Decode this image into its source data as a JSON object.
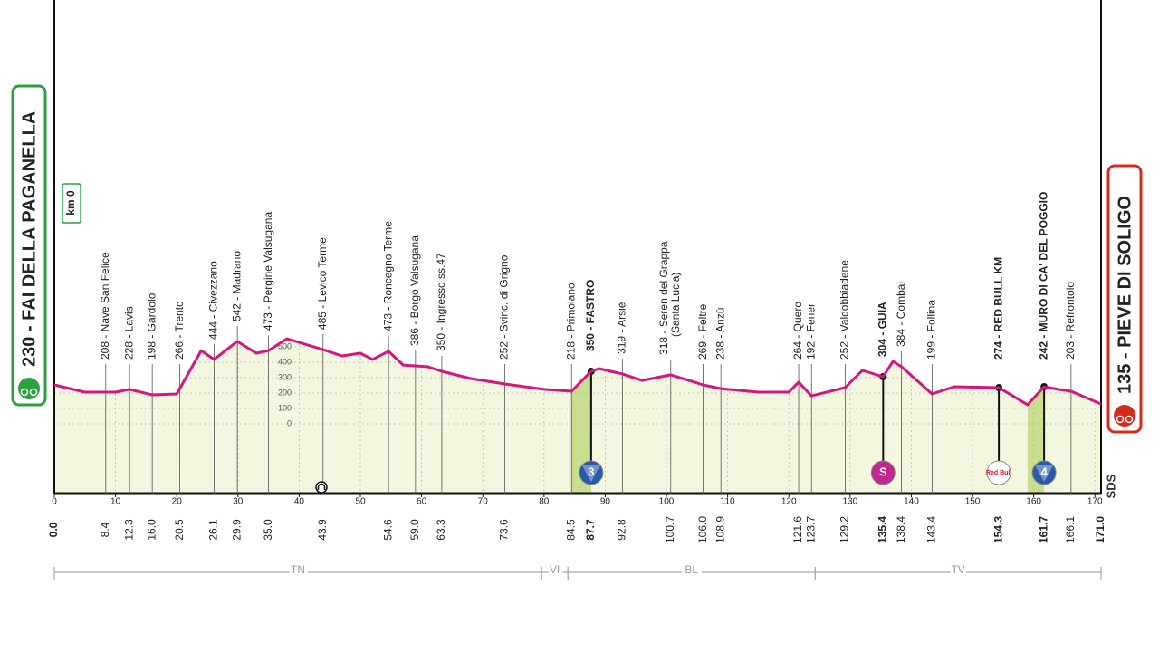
{
  "chart_data": {
    "type": "area",
    "line_color": "#d4177e",
    "area_color": "#f4f7df",
    "climb_color": "#c9de8e",
    "grid": true,
    "xlim": [
      0,
      171
    ],
    "ylim": [
      -453,
      2753
    ],
    "xticks": [
      0,
      10,
      20,
      30,
      40,
      50,
      60,
      70,
      80,
      90,
      100,
      110,
      120,
      130,
      140,
      150,
      160,
      170
    ],
    "yticks": [
      0,
      100,
      200,
      300,
      400,
      500
    ],
    "x": [
      0,
      5,
      10,
      12.3,
      16,
      20,
      24,
      26.1,
      29.9,
      33,
      35,
      38,
      43.9,
      47,
      50,
      52,
      54.6,
      57,
      61,
      63.3,
      68,
      73.6,
      80,
      84.5,
      87.7,
      89,
      92.8,
      96,
      100.7,
      106,
      108.9,
      115,
      120,
      121.6,
      123.7,
      129.2,
      132,
      135.4,
      137,
      138.4,
      143.4,
      147,
      154.3,
      159,
      161.7,
      164,
      166.1,
      171
    ],
    "y": [
      253,
      206,
      206,
      224,
      188,
      194,
      476,
      418,
      535,
      459,
      476,
      553,
      482,
      441,
      459,
      418,
      471,
      382,
      371,
      341,
      294,
      259,
      224,
      212,
      341,
      359,
      324,
      282,
      318,
      253,
      229,
      206,
      206,
      271,
      182,
      235,
      347,
      306,
      406,
      371,
      194,
      241,
      235,
      124,
      241,
      224,
      212,
      129
    ],
    "start": {
      "km": {
        "value": 0,
        "label": "0.0"
      },
      "label": "230 - FAI DELLA PAGANELLA",
      "color": "#2e9e3e",
      "badge": "km 0"
    },
    "finish": {
      "km": {
        "value": 171,
        "label": "171.0"
      },
      "label": "135 - PIEVE DI SOLIGO",
      "color": "#d52b1e"
    },
    "sponsor": "SDS",
    "waypoints": [
      {
        "km": 8.4,
        "label": "208 - Nave San Felice"
      },
      {
        "km": 12.3,
        "label": "228 - Lavis"
      },
      {
        "km": {
          "value": 16,
          "label": "16.0"
        },
        "label": "198 - Gardolo"
      },
      {
        "km": 20.5,
        "label": "266 - Trento"
      },
      {
        "km": 26.1,
        "label": "444 - Civezzano"
      },
      {
        "km": 29.9,
        "label": "542 - Madrano"
      },
      {
        "km": {
          "value": 35,
          "label": "35.0"
        },
        "label": "473 - Pergine Valsugana"
      },
      {
        "km": 43.9,
        "label": "485 - Levico Terme"
      },
      {
        "km": 54.6,
        "label": "473 - Roncegno Terme"
      },
      {
        "km": {
          "value": 59,
          "label": "59.0"
        },
        "label": "386 - Borgo Valsugana"
      },
      {
        "km": 63.3,
        "label": "350 - Ingresso ss.47"
      },
      {
        "km": 73.6,
        "label": "252 - Svinc. di Grigno"
      },
      {
        "km": 84.5,
        "label": "218 - Primolano"
      },
      {
        "km": 87.7,
        "label": "350 - FASTRO",
        "bold": true,
        "climb_from": 84.5,
        "marker": {
          "label": "3",
          "color": "#2a5aa8"
        }
      },
      {
        "km": 92.8,
        "label": "319 - Arsiè"
      },
      {
        "km": 100.7,
        "label": "318 - Seren del Grappa",
        "sublabel": "(Santa Lucia)"
      },
      {
        "km": {
          "value": 106,
          "label": "106.0"
        },
        "label": "269 - Feltre"
      },
      {
        "km": 108.9,
        "label": "238 - Anzù"
      },
      {
        "km": 121.6,
        "label": "264 - Quero"
      },
      {
        "km": 123.7,
        "label": "192 - Fener"
      },
      {
        "km": 129.2,
        "label": "252 - Valdobbiadene"
      },
      {
        "km": 135.4,
        "label": "304 - GUIA",
        "bold": true,
        "marker": {
          "label": "S",
          "color": "#c2278f"
        }
      },
      {
        "km": 138.4,
        "label": "384 - Combai"
      },
      {
        "km": 143.4,
        "label": "199 - Follina"
      },
      {
        "km": 154.3,
        "label": "274 - RED BULL KM",
        "bold": true,
        "marker": {
          "label": "Red Bull",
          "color": "#ffffff"
        }
      },
      {
        "km": 161.7,
        "label": "242 - MURO DI CA' DEL POGGIO",
        "bold": true,
        "climb_from": 159,
        "marker": {
          "label": "4",
          "color": "#2a5aa8"
        }
      },
      {
        "km": 166.1,
        "label": "203 - Refrontolo"
      }
    ],
    "regions": [
      {
        "name": "TN",
        "from": 0,
        "to": 79.6
      },
      {
        "name": "VI",
        "from": 79.6,
        "to": 83.9
      },
      {
        "name": "BL",
        "from": 83.9,
        "to": 124.3
      },
      {
        "name": "TV",
        "from": 124.3,
        "to": 171
      }
    ]
  }
}
